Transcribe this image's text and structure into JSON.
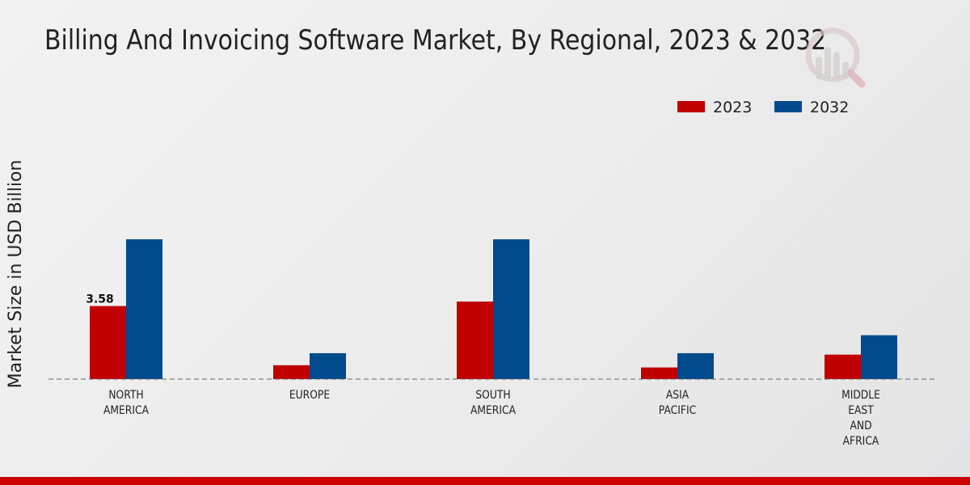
{
  "colors": {
    "series_2023": "#c00000",
    "series_2032": "#004a8d",
    "bottom_bar": "#cc0000",
    "baseline": "#666666"
  },
  "logo": {
    "name": "market-research-logo-icon"
  },
  "chart_data": {
    "type": "bar",
    "title": "Billing And Invoicing Software Market, By Regional, 2023 & 2032",
    "xlabel": "",
    "ylabel": "Market Size in USD Billion",
    "ylim": [
      0,
      10
    ],
    "legend_position": "top-right",
    "categories": [
      [
        "NORTH",
        "AMERICA"
      ],
      [
        "EUROPE"
      ],
      [
        "SOUTH",
        "AMERICA"
      ],
      [
        "ASIA",
        "PACIFIC"
      ],
      [
        "MIDDLE",
        "EAST",
        "AND",
        "AFRICA"
      ]
    ],
    "series": [
      {
        "name": "2023",
        "values": [
          3.58,
          0.68,
          3.8,
          0.57,
          1.2
        ]
      },
      {
        "name": "2032",
        "values": [
          6.85,
          1.27,
          6.85,
          1.27,
          2.15
        ]
      }
    ],
    "data_labels": [
      {
        "series": 0,
        "index": 0,
        "text": "3.58"
      }
    ]
  }
}
